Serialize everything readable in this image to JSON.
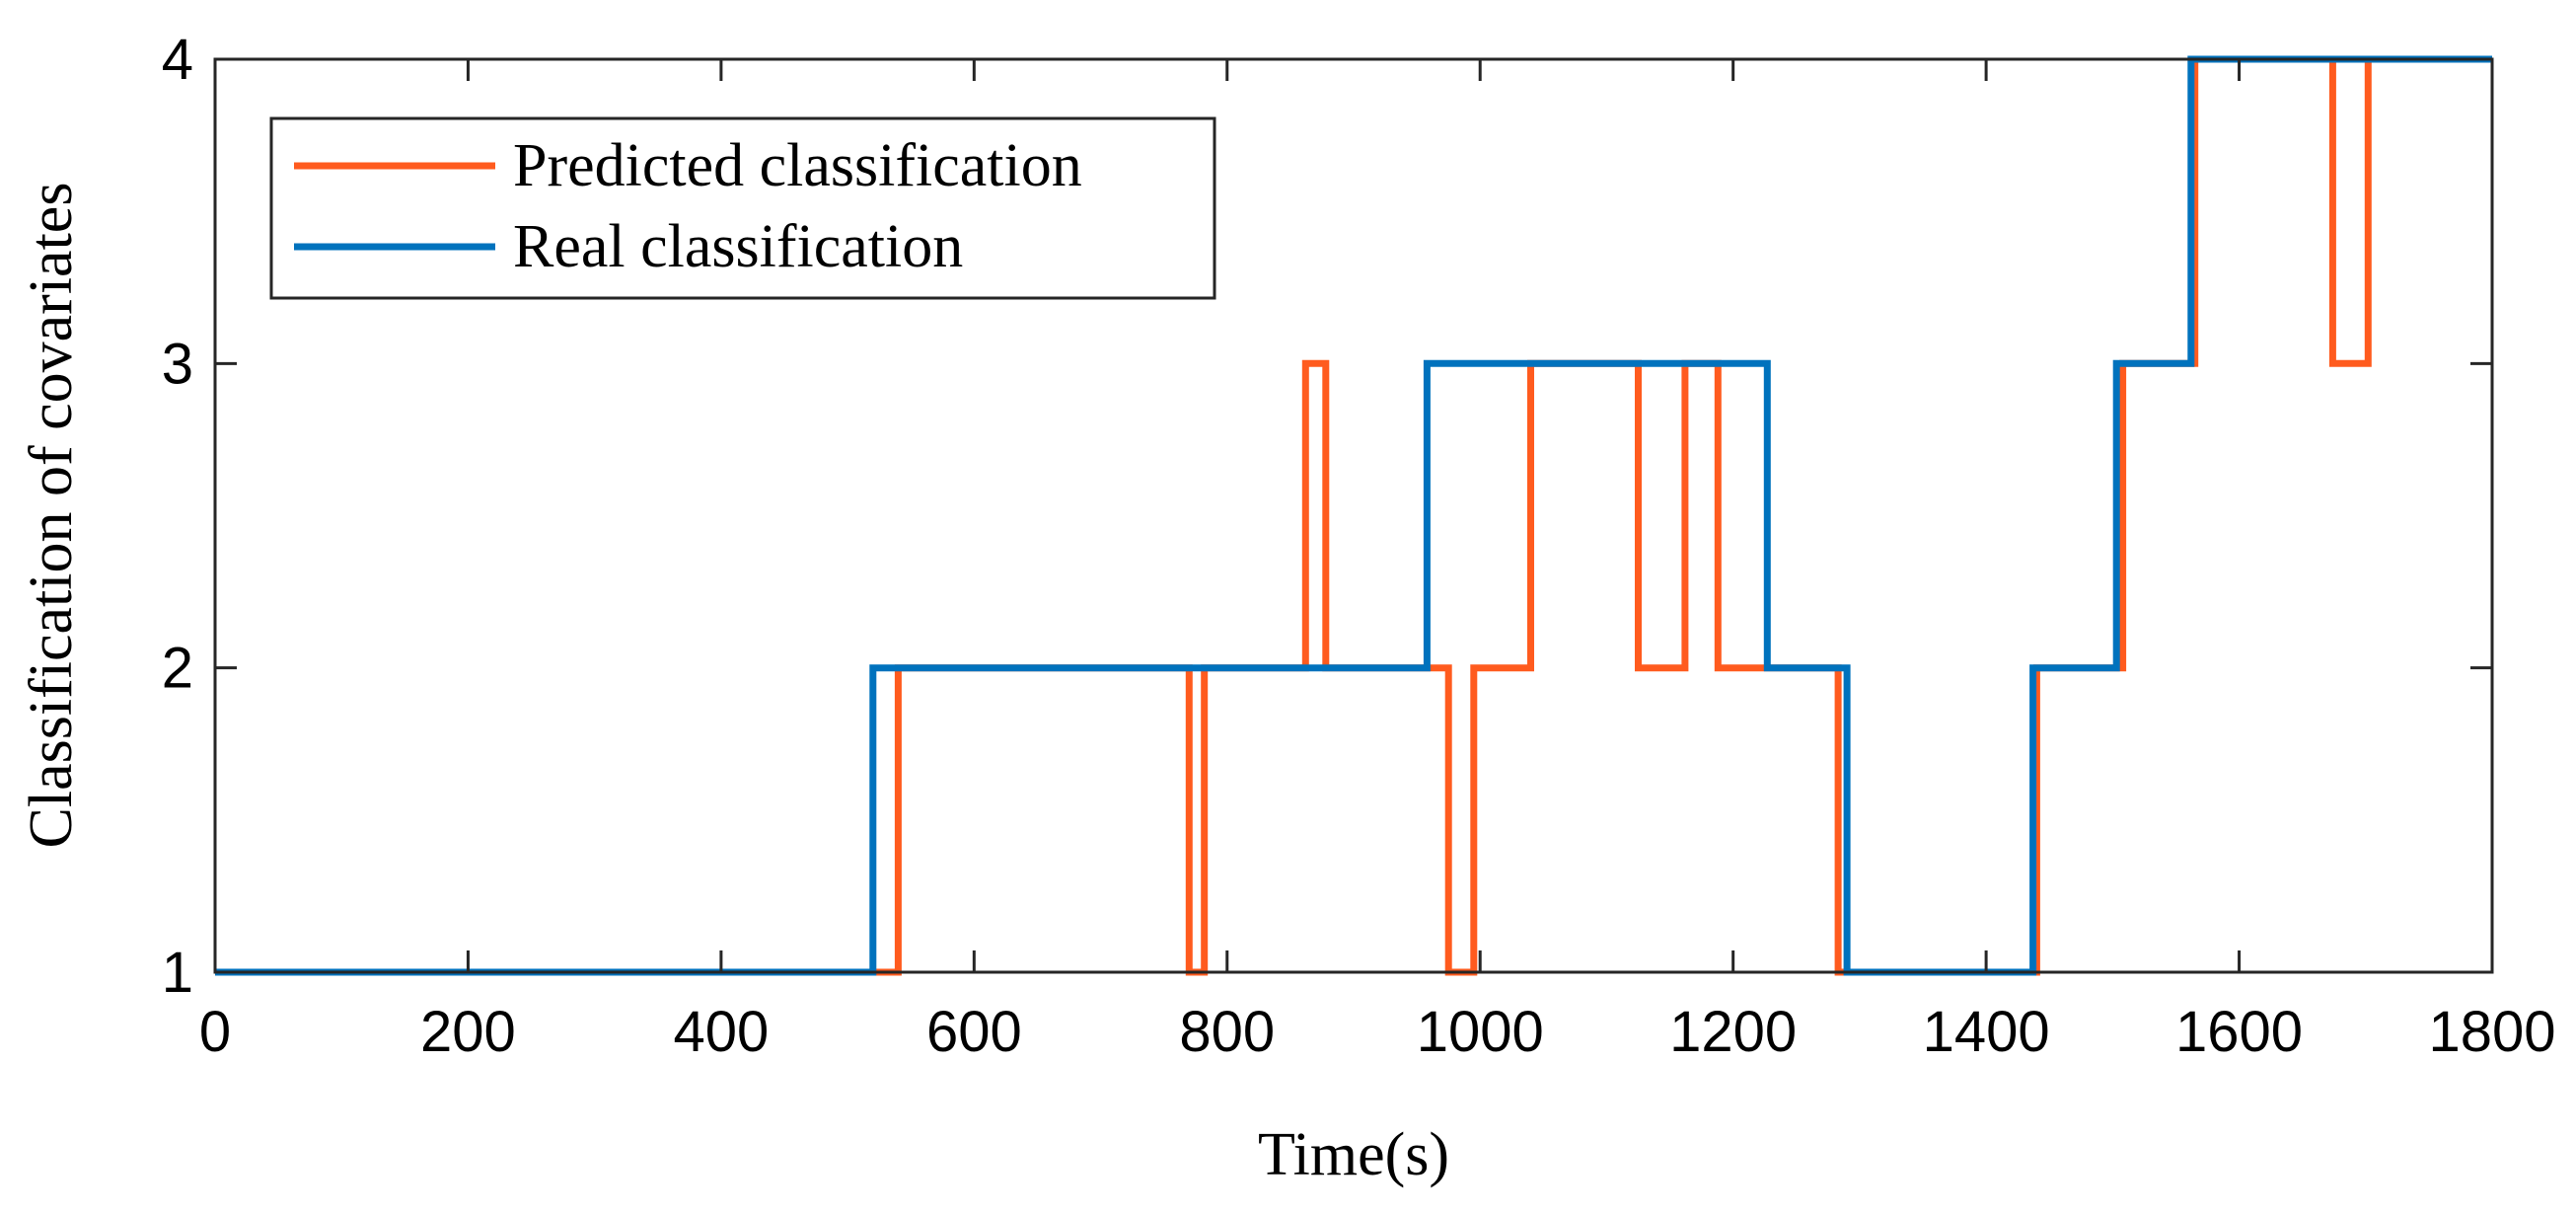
{
  "chart_data": {
    "type": "line",
    "title": "",
    "xlabel": "Time(s)",
    "ylabel": "Classification of covariates",
    "xlim": [
      0,
      1800
    ],
    "ylim": [
      1,
      4
    ],
    "xticks": [
      "0",
      "200",
      "400",
      "600",
      "800",
      "1000",
      "1200",
      "1400",
      "1600",
      "1800"
    ],
    "yticks": [
      "1",
      "2",
      "3",
      "4"
    ],
    "grid": false,
    "legend_position": "top-left",
    "series": [
      {
        "name": "Predicted classification",
        "color": "#FF5B1E",
        "step_points": [
          [
            0,
            1
          ],
          [
            540,
            1
          ],
          [
            540,
            2
          ],
          [
            770,
            2
          ],
          [
            770,
            1
          ],
          [
            782,
            1
          ],
          [
            782,
            2
          ],
          [
            862,
            2
          ],
          [
            862,
            3
          ],
          [
            878,
            3
          ],
          [
            878,
            2
          ],
          [
            975,
            2
          ],
          [
            975,
            1
          ],
          [
            995,
            1
          ],
          [
            995,
            2
          ],
          [
            1040,
            2
          ],
          [
            1040,
            3
          ],
          [
            1125,
            3
          ],
          [
            1125,
            2
          ],
          [
            1162,
            2
          ],
          [
            1162,
            3
          ],
          [
            1188,
            3
          ],
          [
            1188,
            2
          ],
          [
            1283,
            2
          ],
          [
            1283,
            1
          ],
          [
            1440,
            1
          ],
          [
            1440,
            2
          ],
          [
            1508,
            2
          ],
          [
            1508,
            3
          ],
          [
            1565,
            3
          ],
          [
            1565,
            4
          ],
          [
            1674,
            4
          ],
          [
            1674,
            3
          ],
          [
            1702,
            3
          ],
          [
            1702,
            4
          ],
          [
            1800,
            4
          ]
        ]
      },
      {
        "name": "Real classification",
        "color": "#0072BD",
        "step_points": [
          [
            0,
            1
          ],
          [
            520,
            1
          ],
          [
            520,
            2
          ],
          [
            958,
            2
          ],
          [
            958,
            3
          ],
          [
            1227,
            3
          ],
          [
            1227,
            2
          ],
          [
            1290,
            2
          ],
          [
            1290,
            1
          ],
          [
            1437,
            1
          ],
          [
            1437,
            2
          ],
          [
            1503,
            2
          ],
          [
            1503,
            3
          ],
          [
            1562,
            3
          ],
          [
            1562,
            4
          ],
          [
            1800,
            4
          ]
        ]
      }
    ]
  }
}
